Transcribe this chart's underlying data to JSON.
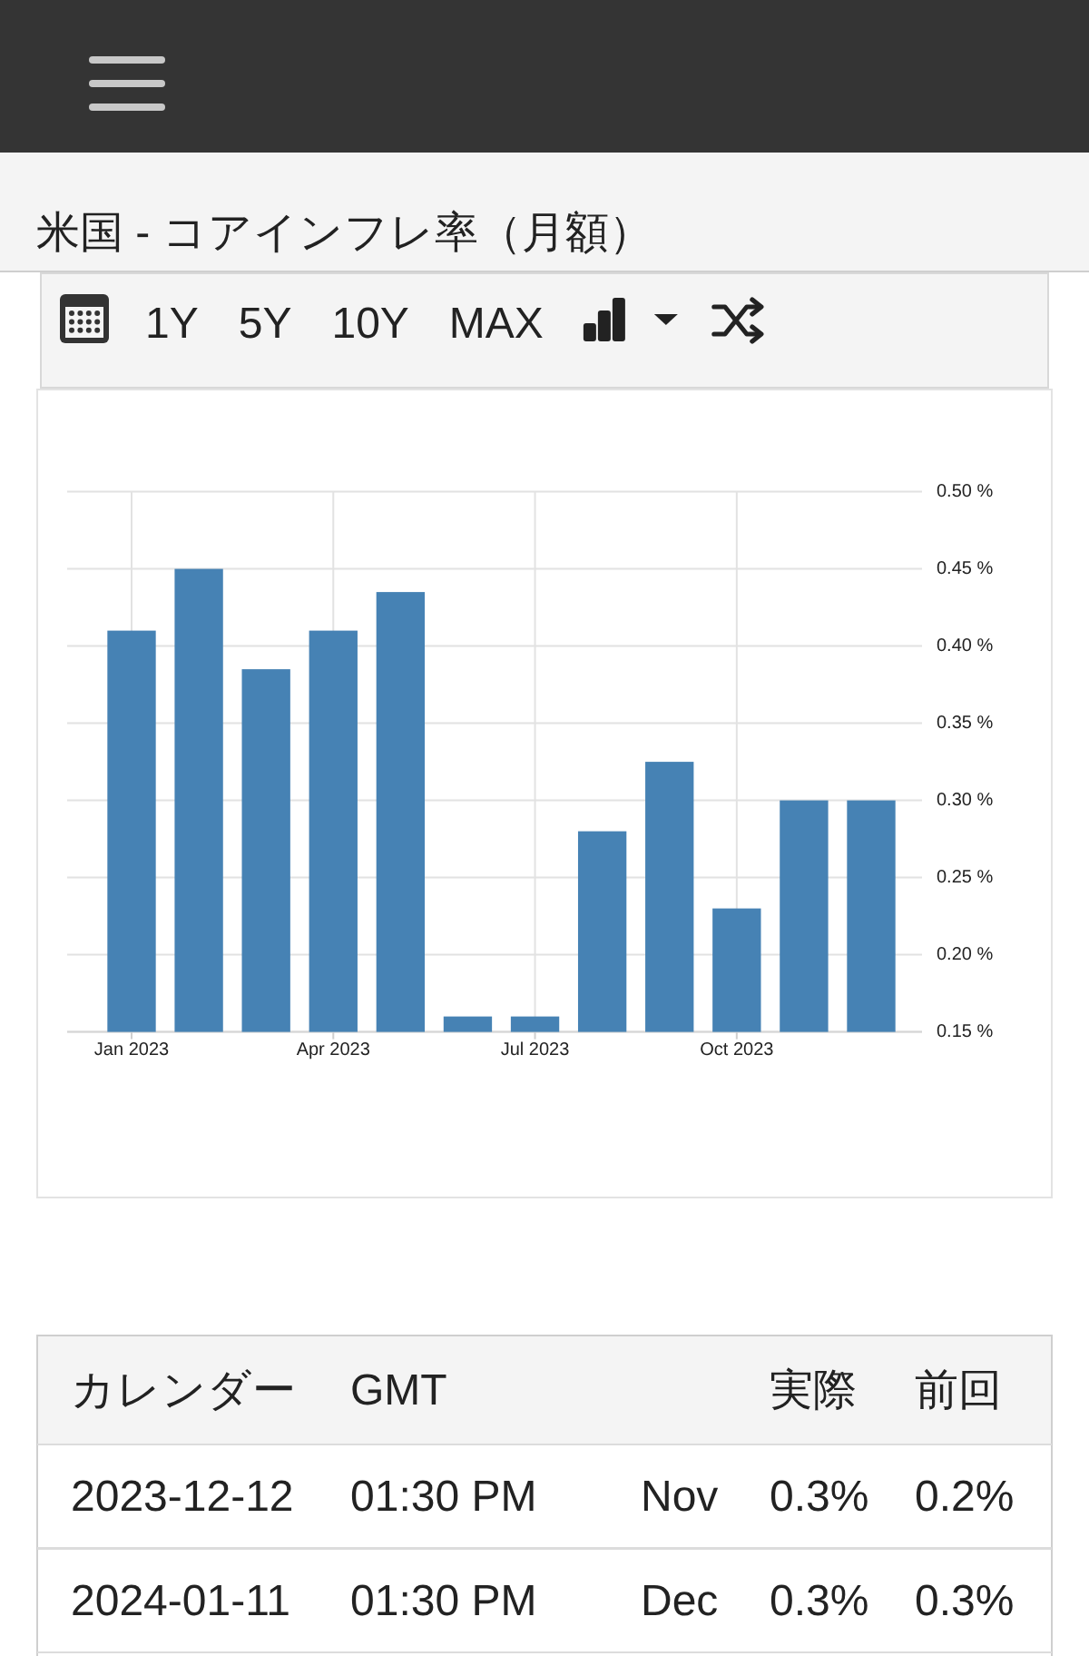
{
  "chart_data": [
    {
      "type": "bar",
      "title": "米国 - コアインフレ率（月額）",
      "annotations": [
        "1Y",
        "5Y",
        "10Y",
        "MAX"
      ],
      "categories": [
        "Jan 2023",
        null,
        null,
        "Apr 2023",
        null,
        null,
        "Jul 2023",
        null,
        null,
        "Oct 2023",
        null,
        null
      ],
      "values": [
        0.41,
        0.45,
        0.385,
        0.41,
        0.435,
        0.16,
        0.16,
        0.28,
        0.325,
        0.23,
        0.3,
        0.3
      ],
      "color": "#4682b4",
      "ylim": [
        0.15,
        0.5
      ],
      "yticks": [
        {
          "value": 0.15,
          "label": "0.15 %"
        },
        {
          "value": 0.2,
          "label": "0.20 %"
        },
        {
          "value": 0.25,
          "label": "0.25 %"
        },
        {
          "value": 0.3,
          "label": "0.30 %"
        },
        {
          "value": 0.35,
          "label": "0.35 %"
        },
        {
          "value": 0.4,
          "label": "0.40 %"
        },
        {
          "value": 0.45,
          "label": "0.45 %"
        },
        {
          "value": 0.5,
          "label": "0.50 %"
        }
      ],
      "grid": true
    },
    {
      "type": "other",
      "categories": [
        "カレンダー",
        "GMT",
        null,
        "実際",
        "前回"
      ],
      "annotations": [
        "2023-12-12",
        "01:30 PM",
        "Nov",
        "0.3%",
        "0.2%",
        "2024-01-11",
        "01:30 PM",
        "Dec",
        "0.3%",
        "0.3%"
      ]
    }
  ]
}
